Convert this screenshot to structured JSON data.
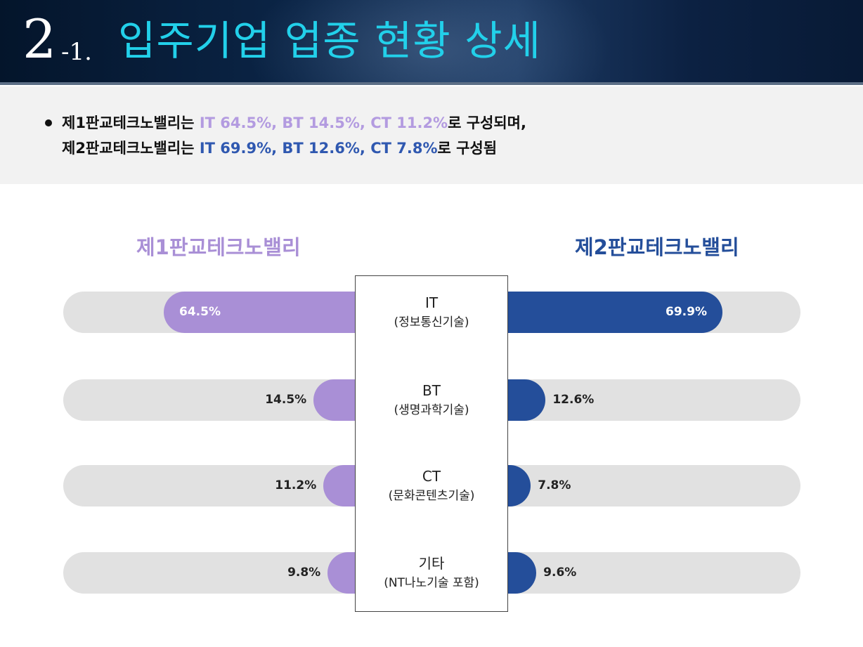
{
  "header": {
    "number": "2",
    "sub_number": "-1.",
    "title": "입주기업 업종 현황 상세"
  },
  "summary": {
    "line1": {
      "prefix": "제1판교테크노밸리는 ",
      "highlight": "IT 64.5%, BT 14.5%, CT 11.2%",
      "suffix": "로 구성되며,"
    },
    "line2": {
      "prefix": "제2판교테크노밸리는 ",
      "highlight": "IT 69.9%, BT 12.6%, CT 7.8%",
      "suffix": "로 구성됨"
    }
  },
  "chart_data": {
    "type": "bar",
    "orientation": "horizontal-butterfly",
    "categories": [
      {
        "name": "IT",
        "detail": "(정보통신기술)"
      },
      {
        "name": "BT",
        "detail": "(생명과학기술)"
      },
      {
        "name": "CT",
        "detail": "(문화콘텐츠기술)"
      },
      {
        "name": "기타",
        "detail": "(NT나노기술 포함)"
      }
    ],
    "series": [
      {
        "name": "제1판교테크노밸리",
        "side": "left",
        "color": "#a98fd6",
        "values": [
          64.5,
          14.5,
          11.2,
          9.8
        ],
        "labels": [
          "64.5%",
          "14.5%",
          "11.2%",
          "9.8%"
        ]
      },
      {
        "name": "제2판교테크노밸리",
        "side": "right",
        "color": "#244e9a",
        "values": [
          69.9,
          12.6,
          7.8,
          9.6
        ],
        "labels": [
          "69.9%",
          "12.6%",
          "7.8%",
          "9.6%"
        ]
      }
    ],
    "unit": "%",
    "track_color": "#e1e1e1"
  }
}
